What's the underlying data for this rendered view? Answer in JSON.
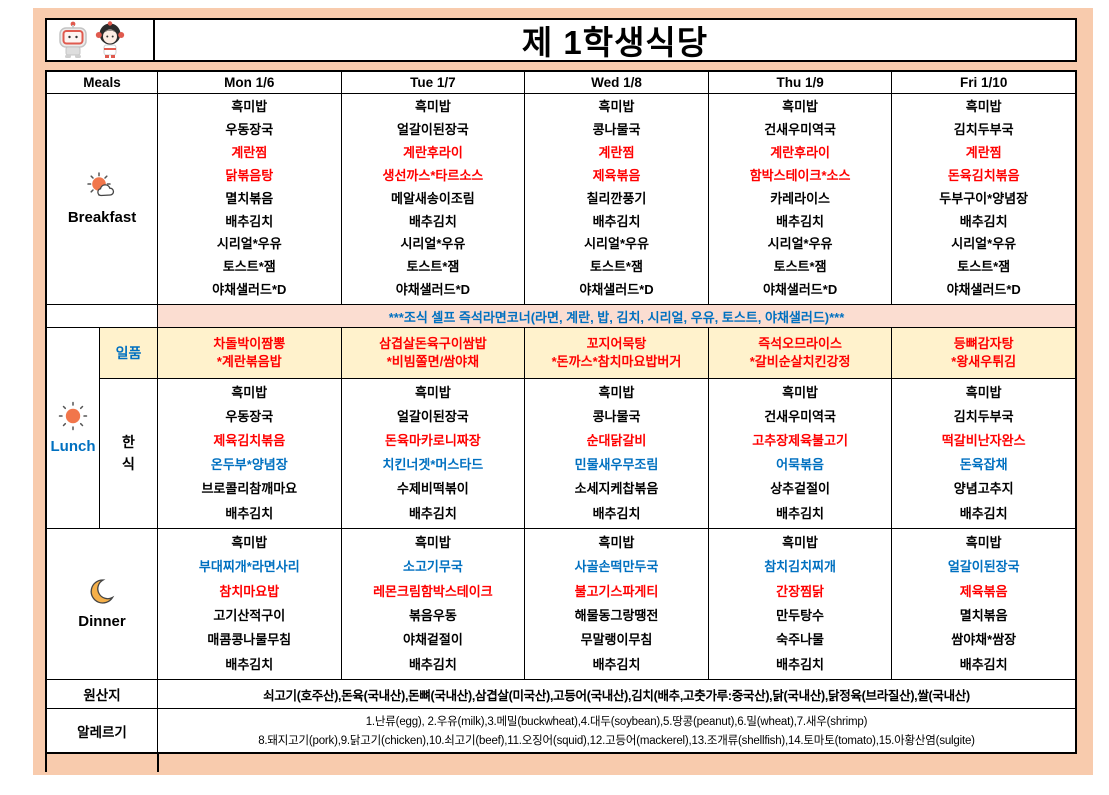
{
  "title": "제 1학생식당",
  "colors": {
    "panel_bg": "#F8CBAD",
    "note_bg": "#FBDDD1",
    "special_bg": "#FFF2CC",
    "accent_red": "#FF0000",
    "accent_blue": "#0070C0",
    "border": "#000000"
  },
  "header": {
    "meals": "Meals",
    "days": [
      "Mon 1/6",
      "Tue 1/7",
      "Wed 1/8",
      "Thu 1/9",
      "Fri 1/10"
    ]
  },
  "breakfast": {
    "label": "Breakfast",
    "icon": "sun-behind-cloud",
    "note": "***조식 셀프 즉석라면코너(라면, 계란, 밥, 김치, 시리얼, 우유, 토스트, 야채샐러드)***",
    "columns": [
      [
        {
          "t": "흑미밥",
          "c": "k"
        },
        {
          "t": "우동장국",
          "c": "k"
        },
        {
          "t": "계란찜",
          "c": "r"
        },
        {
          "t": "닭볶음탕",
          "c": "r"
        },
        {
          "t": "멸치볶음",
          "c": "k"
        },
        {
          "t": "배추김치",
          "c": "k"
        },
        {
          "t": "시리얼*우유",
          "c": "k"
        },
        {
          "t": "토스트*잼",
          "c": "k"
        },
        {
          "t": "야채샐러드*D",
          "c": "k"
        }
      ],
      [
        {
          "t": "흑미밥",
          "c": "k"
        },
        {
          "t": "얼갈이된장국",
          "c": "k"
        },
        {
          "t": "계란후라이",
          "c": "r"
        },
        {
          "t": "생선까스*타르소스",
          "c": "r"
        },
        {
          "t": "메알새송이조림",
          "c": "k"
        },
        {
          "t": "배추김치",
          "c": "k"
        },
        {
          "t": "시리얼*우유",
          "c": "k"
        },
        {
          "t": "토스트*잼",
          "c": "k"
        },
        {
          "t": "야채샐러드*D",
          "c": "k"
        }
      ],
      [
        {
          "t": "흑미밥",
          "c": "k"
        },
        {
          "t": "콩나물국",
          "c": "k"
        },
        {
          "t": "계란찜",
          "c": "r"
        },
        {
          "t": "제육볶음",
          "c": "r"
        },
        {
          "t": "칠리깐풍기",
          "c": "k"
        },
        {
          "t": "배추김치",
          "c": "k"
        },
        {
          "t": "시리얼*우유",
          "c": "k"
        },
        {
          "t": "토스트*잼",
          "c": "k"
        },
        {
          "t": "야채샐러드*D",
          "c": "k"
        }
      ],
      [
        {
          "t": "흑미밥",
          "c": "k"
        },
        {
          "t": "건새우미역국",
          "c": "k"
        },
        {
          "t": "계란후라이",
          "c": "r"
        },
        {
          "t": "함박스테이크*소스",
          "c": "r"
        },
        {
          "t": "카레라이스",
          "c": "k"
        },
        {
          "t": "배추김치",
          "c": "k"
        },
        {
          "t": "시리얼*우유",
          "c": "k"
        },
        {
          "t": "토스트*잼",
          "c": "k"
        },
        {
          "t": "야채샐러드*D",
          "c": "k"
        }
      ],
      [
        {
          "t": "흑미밥",
          "c": "k"
        },
        {
          "t": "김치두부국",
          "c": "k"
        },
        {
          "t": "계란찜",
          "c": "r"
        },
        {
          "t": "돈육김치볶음",
          "c": "r"
        },
        {
          "t": "두부구이*양념장",
          "c": "k"
        },
        {
          "t": "배추김치",
          "c": "k"
        },
        {
          "t": "시리얼*우유",
          "c": "k"
        },
        {
          "t": "토스트*잼",
          "c": "k"
        },
        {
          "t": "야채샐러드*D",
          "c": "k"
        }
      ]
    ]
  },
  "lunch": {
    "label": "Lunch",
    "icon": "sun",
    "ilpum_label": "일품",
    "hansik_label": "한식",
    "ilpum": [
      [
        {
          "t": "차돌박이짬뽕",
          "c": "r"
        },
        {
          "t": "*계란볶음밥",
          "c": "r"
        }
      ],
      [
        {
          "t": "삼겹살돈육구이쌈밥",
          "c": "r"
        },
        {
          "t": "*비빔쫄면/쌈야채",
          "c": "r"
        }
      ],
      [
        {
          "t": "꼬지어묵탕",
          "c": "r"
        },
        {
          "t": "*돈까스*참치마요밥버거",
          "c": "r"
        }
      ],
      [
        {
          "t": "즉석오므라이스",
          "c": "r"
        },
        {
          "t": "*갈비순살치킨강정",
          "c": "r"
        }
      ],
      [
        {
          "t": "등뼈감자탕",
          "c": "r"
        },
        {
          "t": "*왕새우튀김",
          "c": "r"
        }
      ]
    ],
    "hansik": [
      [
        {
          "t": "흑미밥",
          "c": "k"
        },
        {
          "t": "우동장국",
          "c": "k"
        },
        {
          "t": "제육김치볶음",
          "c": "r"
        },
        {
          "t": "온두부*양념장",
          "c": "b"
        },
        {
          "t": "브로콜리참깨마요",
          "c": "k"
        },
        {
          "t": "배추김치",
          "c": "k"
        }
      ],
      [
        {
          "t": "흑미밥",
          "c": "k"
        },
        {
          "t": "얼갈이된장국",
          "c": "k"
        },
        {
          "t": "돈육마카로니짜장",
          "c": "r"
        },
        {
          "t": "치킨너겟*머스타드",
          "c": "b"
        },
        {
          "t": "수제비떡볶이",
          "c": "k"
        },
        {
          "t": "배추김치",
          "c": "k"
        }
      ],
      [
        {
          "t": "흑미밥",
          "c": "k"
        },
        {
          "t": "콩나물국",
          "c": "k"
        },
        {
          "t": "순대닭갈비",
          "c": "r"
        },
        {
          "t": "민물새우무조림",
          "c": "b"
        },
        {
          "t": "소세지케찹볶음",
          "c": "k"
        },
        {
          "t": "배추김치",
          "c": "k"
        }
      ],
      [
        {
          "t": "흑미밥",
          "c": "k"
        },
        {
          "t": "건새우미역국",
          "c": "k"
        },
        {
          "t": "고추장제육불고기",
          "c": "r"
        },
        {
          "t": "어묵볶음",
          "c": "b"
        },
        {
          "t": "상추겉절이",
          "c": "k"
        },
        {
          "t": "배추김치",
          "c": "k"
        }
      ],
      [
        {
          "t": "흑미밥",
          "c": "k"
        },
        {
          "t": "김치두부국",
          "c": "k"
        },
        {
          "t": "떡갈비난자완스",
          "c": "r"
        },
        {
          "t": "돈육잡채",
          "c": "b"
        },
        {
          "t": "양념고추지",
          "c": "k"
        },
        {
          "t": "배추김치",
          "c": "k"
        }
      ]
    ]
  },
  "dinner": {
    "label": "Dinner",
    "icon": "crescent-moon",
    "columns": [
      [
        {
          "t": "흑미밥",
          "c": "k"
        },
        {
          "t": "부대찌개*라면사리",
          "c": "b"
        },
        {
          "t": "참치마요밥",
          "c": "r"
        },
        {
          "t": "고기산적구이",
          "c": "k"
        },
        {
          "t": "매콤콩나물무침",
          "c": "k"
        },
        {
          "t": "배추김치",
          "c": "k"
        }
      ],
      [
        {
          "t": "흑미밥",
          "c": "k"
        },
        {
          "t": "소고기무국",
          "c": "b"
        },
        {
          "t": "레몬크림함박스테이크",
          "c": "r"
        },
        {
          "t": "볶음우동",
          "c": "k"
        },
        {
          "t": "야채겉절이",
          "c": "k"
        },
        {
          "t": "배추김치",
          "c": "k"
        }
      ],
      [
        {
          "t": "흑미밥",
          "c": "k"
        },
        {
          "t": "사골손떡만두국",
          "c": "b"
        },
        {
          "t": "불고기스파게티",
          "c": "r"
        },
        {
          "t": "해물동그랑땡전",
          "c": "k"
        },
        {
          "t": "무말랭이무침",
          "c": "k"
        },
        {
          "t": "배추김치",
          "c": "k"
        }
      ],
      [
        {
          "t": "흑미밥",
          "c": "k"
        },
        {
          "t": "참치김치찌개",
          "c": "b"
        },
        {
          "t": "간장찜닭",
          "c": "r"
        },
        {
          "t": "만두탕수",
          "c": "k"
        },
        {
          "t": "숙주나물",
          "c": "k"
        },
        {
          "t": "배추김치",
          "c": "k"
        }
      ],
      [
        {
          "t": "흑미밥",
          "c": "k"
        },
        {
          "t": "얼갈이된장국",
          "c": "b"
        },
        {
          "t": "제육볶음",
          "c": "r"
        },
        {
          "t": "멸치볶음",
          "c": "k"
        },
        {
          "t": "쌈야채*쌈장",
          "c": "k"
        },
        {
          "t": "배추김치",
          "c": "k"
        }
      ]
    ]
  },
  "origin": {
    "label": "원산지",
    "text": "쇠고기(호주산),돈육(국내산),돈뼈(국내산),삼겹살(미국산),고등어(국내산),김치(배추,고춧가루:중국산),닭(국내산),닭정육(브라질산),쌀(국내산)"
  },
  "allergy": {
    "label": "알레르기",
    "line1": "1.난류(egg), 2.우유(milk),3.메밀(buckwheat),4.대두(soybean),5.땅콩(peanut),6.밀(wheat),7.새우(shrimp)",
    "line2": "8.돼지고기(pork),9.닭고기(chicken),10.쇠고기(beef),11.오징어(squid),12.고등어(mackerel),13.조개류(shellfish),14.토마토(tomato),15.아황산염(sulgite)"
  }
}
